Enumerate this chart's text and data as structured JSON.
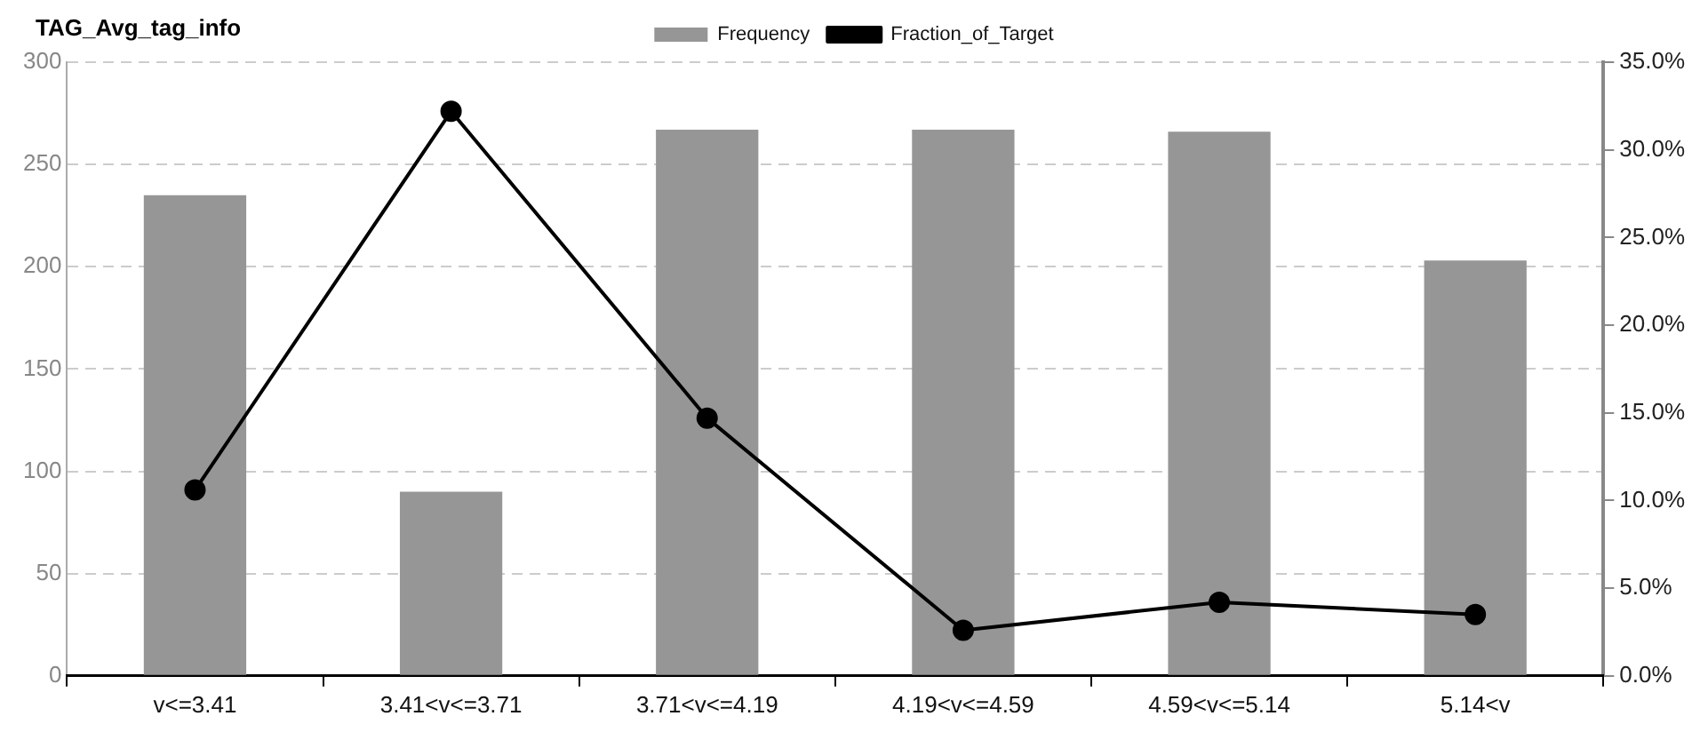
{
  "chart_data": {
    "type": "bar",
    "title": "TAG_Avg_tag_info",
    "categories": [
      "v<=3.41",
      "3.41<v<=3.71",
      "3.71<v<=4.19",
      "4.19<v<=4.59",
      "4.59<v<=5.14",
      "5.14<v"
    ],
    "series": [
      {
        "name": "Frequency",
        "color": "#969696",
        "values": [
          235,
          90,
          267,
          267,
          266,
          203
        ]
      },
      {
        "name": "Fraction_of_Target",
        "type": "line",
        "axis": "y2",
        "color": "#000000",
        "marker": "circle",
        "values": [
          10.6,
          32.2,
          14.7,
          2.6,
          4.2,
          3.5
        ]
      }
    ],
    "ylim": [
      0,
      300
    ],
    "yticks": [
      0,
      50,
      100,
      150,
      200,
      250,
      300
    ],
    "y2lim": [
      0,
      35
    ],
    "y2ticks": [
      {
        "value": 0,
        "label": "0.0%"
      },
      {
        "value": 5,
        "label": "5.0%"
      },
      {
        "value": 10,
        "label": "10.0%"
      },
      {
        "value": 15,
        "label": "15.0%"
      },
      {
        "value": 20,
        "label": "20.0%"
      },
      {
        "value": 25,
        "label": "25.0%"
      },
      {
        "value": 30,
        "label": "30.0%"
      },
      {
        "value": 35,
        "label": "35.0%"
      }
    ],
    "grid": "y",
    "legend": "top"
  }
}
